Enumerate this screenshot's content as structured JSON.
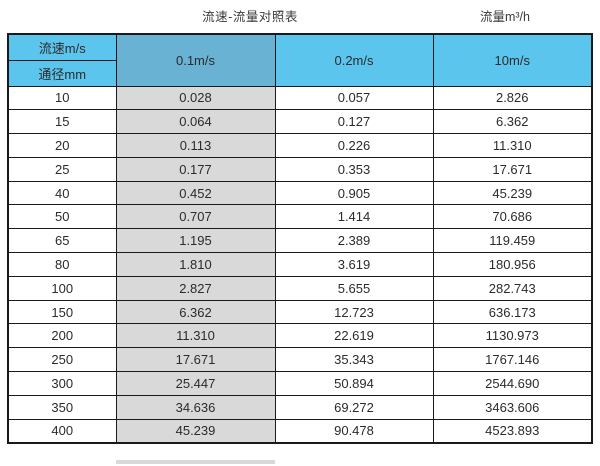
{
  "page": {
    "title_left": "流速-流量对照表",
    "title_right": "流量m³/h"
  },
  "table": {
    "corner_top": "流速m/s",
    "corner_bottom": "通径mm",
    "columns": [
      "0.1m/s",
      "0.2m/s",
      "10m/s"
    ],
    "rows": [
      {
        "diameter": "10",
        "v01": "0.028",
        "v02": "0.057",
        "v10": "2.826"
      },
      {
        "diameter": "15",
        "v01": "0.064",
        "v02": "0.127",
        "v10": "6.362"
      },
      {
        "diameter": "20",
        "v01": "0.113",
        "v02": "0.226",
        "v10": "11.310"
      },
      {
        "diameter": "25",
        "v01": "0.177",
        "v02": "0.353",
        "v10": "17.671"
      },
      {
        "diameter": "40",
        "v01": "0.452",
        "v02": "0.905",
        "v10": "45.239"
      },
      {
        "diameter": "50",
        "v01": "0.707",
        "v02": "1.414",
        "v10": "70.686"
      },
      {
        "diameter": "65",
        "v01": "1.195",
        "v02": "2.389",
        "v10": "119.459"
      },
      {
        "diameter": "80",
        "v01": "1.810",
        "v02": "3.619",
        "v10": "180.956"
      },
      {
        "diameter": "100",
        "v01": "2.827",
        "v02": "5.655",
        "v10": "282.743"
      },
      {
        "diameter": "150",
        "v01": "6.362",
        "v02": "12.723",
        "v10": "636.173"
      },
      {
        "diameter": "200",
        "v01": "11.310",
        "v02": "22.619",
        "v10": "1130.973"
      },
      {
        "diameter": "250",
        "v01": "17.671",
        "v02": "35.343",
        "v10": "1767.146"
      },
      {
        "diameter": "300",
        "v01": "25.447",
        "v02": "50.894",
        "v10": "2544.690"
      },
      {
        "diameter": "350",
        "v01": "34.636",
        "v02": "69.272",
        "v10": "3463.606"
      },
      {
        "diameter": "400",
        "v01": "45.239",
        "v02": "90.478",
        "v10": "4523.893"
      }
    ]
  },
  "colors": {
    "header_blue": "#5cc5ee",
    "header_blue_dark": "#69b2d4",
    "gray_column": "#d9d9d9",
    "border": "#1a1a1a",
    "text": "#333333"
  },
  "chart_data": {
    "type": "table",
    "title": "流速-流量对照表",
    "unit_label": "流量m³/h",
    "corner_headers": [
      "流速m/s",
      "通径mm"
    ],
    "velocity_columns_m_per_s": [
      0.1,
      0.2,
      10
    ],
    "diameters_mm": [
      10,
      15,
      20,
      25,
      40,
      50,
      65,
      80,
      100,
      150,
      200,
      250,
      300,
      350,
      400
    ],
    "series": [
      {
        "name": "0.1m/s",
        "values": [
          0.028,
          0.064,
          0.113,
          0.177,
          0.452,
          0.707,
          1.195,
          1.81,
          2.827,
          6.362,
          11.31,
          17.671,
          25.447,
          34.636,
          45.239
        ]
      },
      {
        "name": "0.2m/s",
        "values": [
          0.057,
          0.127,
          0.226,
          0.353,
          0.905,
          1.414,
          2.389,
          3.619,
          5.655,
          12.723,
          22.619,
          35.343,
          50.894,
          69.272,
          90.478
        ]
      },
      {
        "name": "10m/s",
        "values": [
          2.826,
          6.362,
          11.31,
          17.671,
          45.239,
          70.686,
          119.459,
          180.956,
          282.743,
          636.173,
          1130.973,
          1767.146,
          2544.69,
          3463.606,
          4523.893
        ]
      }
    ]
  }
}
